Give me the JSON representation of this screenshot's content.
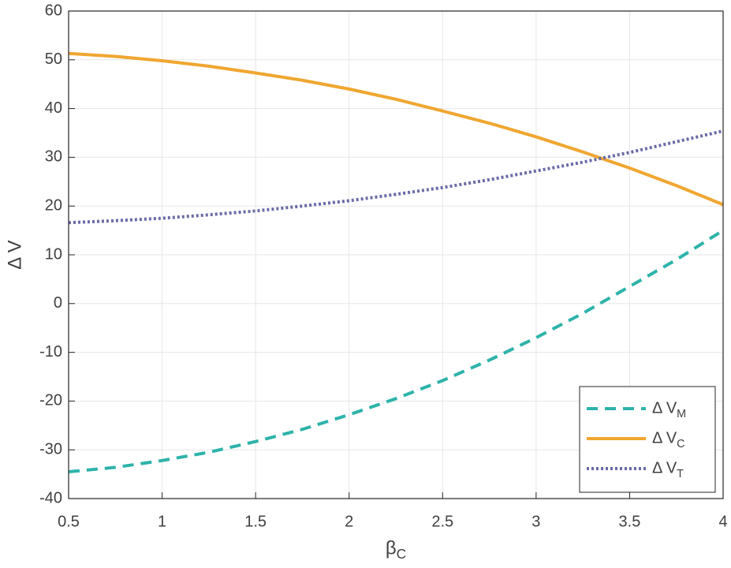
{
  "chart_data": {
    "type": "line",
    "xlabel": "β_C",
    "ylabel": "Δ V",
    "x": [
      0.5,
      0.75,
      1,
      1.25,
      1.5,
      1.75,
      2,
      2.25,
      2.5,
      2.75,
      3,
      3.25,
      3.5,
      3.75,
      4
    ],
    "series": [
      {
        "name": "Δ V_M",
        "color": "#2db3aa",
        "linestyle": "dashed",
        "values": [
          -34.5,
          -33.6,
          -32.2,
          -30.5,
          -28.3,
          -25.8,
          -22.8,
          -19.5,
          -15.8,
          -11.6,
          -7.0,
          -2.0,
          3.5,
          9.0,
          15.0
        ]
      },
      {
        "name": "Δ V_C",
        "color": "#f0a630",
        "linestyle": "solid",
        "values": [
          51.3,
          50.7,
          49.8,
          48.7,
          47.3,
          45.8,
          44.0,
          41.9,
          39.5,
          37.0,
          34.2,
          31.1,
          27.8,
          24.2,
          20.3
        ]
      },
      {
        "name": "Δ V_T",
        "color": "#6a6aa8",
        "linestyle": "dotted",
        "values": [
          16.6,
          17.0,
          17.5,
          18.2,
          19.0,
          20.0,
          21.1,
          22.4,
          23.8,
          25.4,
          27.2,
          29.0,
          31.0,
          33.2,
          35.4
        ]
      }
    ],
    "xlim": [
      0.5,
      4
    ],
    "xticks": [
      0.5,
      1,
      1.5,
      2,
      2.5,
      3,
      3.5,
      4
    ],
    "ylim": [
      -40,
      60
    ],
    "yticks": [
      -40,
      -30,
      -20,
      -10,
      0,
      10,
      20,
      30,
      40,
      50,
      60
    ],
    "grid": true,
    "legend_position": "lower right"
  }
}
